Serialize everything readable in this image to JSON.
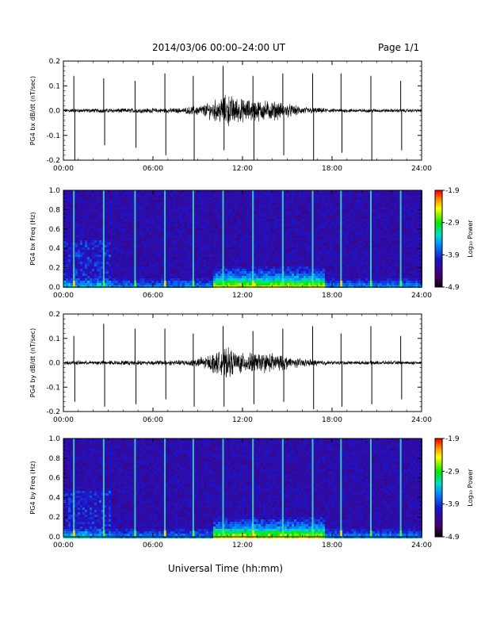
{
  "header": {
    "title": "2014/03/06  00:00–24:00 UT",
    "page": "Page 1/1"
  },
  "footer": {
    "xlabel": "Universal Time (hh:mm)"
  },
  "colorbar": {
    "ticks": [
      "-1.9",
      "-2.9",
      "-3.9",
      "-4.9"
    ],
    "label": "Log₁₀ Power"
  },
  "colors": {
    "trace": "#000000",
    "spectrogram_bg": "#2a1060",
    "spectrogram_low": "#1a2aa0",
    "spectrogram_band": "#20c0b0",
    "line_events": "#40e0c0"
  },
  "chart_data": [
    {
      "type": "line",
      "ylabel": "PG4 bx dB/dt (nT/sec)",
      "xlim": [
        "00:00",
        "24:00"
      ],
      "ylim": [
        -0.2,
        0.2
      ],
      "xticks": [
        "00:00",
        "06:00",
        "12:00",
        "18:00",
        "24:00"
      ],
      "yticks": [
        "-0.2",
        "-0.1",
        "0.0",
        "0.1",
        "0.2"
      ],
      "spike_hours": [
        0.7,
        2.7,
        4.8,
        6.8,
        8.7,
        10.7,
        12.7,
        14.7,
        16.7,
        18.6,
        20.6,
        22.6
      ],
      "spike_max": [
        0.14,
        0.13,
        0.12,
        0.15,
        0.14,
        0.18,
        0.14,
        0.15,
        0.15,
        0.15,
        0.14,
        0.12
      ],
      "spike_min": [
        -0.2,
        -0.14,
        -0.15,
        -0.18,
        -0.2,
        -0.16,
        -0.2,
        -0.18,
        -0.2,
        -0.17,
        -0.2,
        -0.16
      ],
      "noise_envelope": [
        {
          "hour": 0,
          "amp": 0.006
        },
        {
          "hour": 8,
          "amp": 0.008
        },
        {
          "hour": 9.5,
          "amp": 0.02
        },
        {
          "hour": 11,
          "amp": 0.05
        },
        {
          "hour": 12,
          "amp": 0.035
        },
        {
          "hour": 14,
          "amp": 0.03
        },
        {
          "hour": 16,
          "amp": 0.012
        },
        {
          "hour": 18,
          "amp": 0.006
        },
        {
          "hour": 24,
          "amp": 0.005
        }
      ]
    },
    {
      "type": "heatmap",
      "ylabel": "PG4 bx Freq (Hz)",
      "xlim": [
        "00:00",
        "24:00"
      ],
      "ylim": [
        0.0,
        1.0
      ],
      "xticks": [
        "00:00",
        "06:00",
        "12:00",
        "18:00",
        "24:00"
      ],
      "yticks": [
        "0.0",
        "0.2",
        "0.4",
        "0.6",
        "0.8",
        "1.0"
      ],
      "zlim": [
        -4.9,
        -1.9
      ],
      "event_hours": [
        0.7,
        2.7,
        4.8,
        6.8,
        8.7,
        10.7,
        12.7,
        14.7,
        16.7,
        18.6,
        20.6,
        22.6
      ],
      "enhanced_band_hours": [
        10.0,
        17.5
      ]
    },
    {
      "type": "line",
      "ylabel": "PG4 by dB/dt (nT/sec)",
      "xlim": [
        "00:00",
        "24:00"
      ],
      "ylim": [
        -0.2,
        0.2
      ],
      "xticks": [
        "00:00",
        "06:00",
        "12:00",
        "18:00",
        "24:00"
      ],
      "yticks": [
        "-0.2",
        "-0.1",
        "0.0",
        "0.1",
        "0.2"
      ],
      "spike_hours": [
        0.7,
        2.7,
        4.8,
        6.8,
        8.7,
        10.7,
        12.7,
        14.7,
        16.7,
        18.6,
        20.6,
        22.6
      ],
      "spike_max": [
        0.11,
        0.16,
        0.14,
        0.14,
        0.12,
        0.15,
        0.13,
        0.14,
        0.15,
        0.12,
        0.15,
        0.11
      ],
      "spike_min": [
        -0.16,
        -0.18,
        -0.17,
        -0.15,
        -0.18,
        -0.18,
        -0.17,
        -0.16,
        -0.19,
        -0.18,
        -0.17,
        -0.15
      ],
      "noise_envelope": [
        {
          "hour": 0,
          "amp": 0.006
        },
        {
          "hour": 8,
          "amp": 0.008
        },
        {
          "hour": 9.5,
          "amp": 0.02
        },
        {
          "hour": 11,
          "amp": 0.045
        },
        {
          "hour": 12,
          "amp": 0.03
        },
        {
          "hour": 14,
          "amp": 0.03
        },
        {
          "hour": 16,
          "amp": 0.012
        },
        {
          "hour": 18,
          "amp": 0.006
        },
        {
          "hour": 24,
          "amp": 0.005
        }
      ]
    },
    {
      "type": "heatmap",
      "ylabel": "PG4 by Freq (Hz)",
      "xlim": [
        "00:00",
        "24:00"
      ],
      "ylim": [
        0.0,
        1.0
      ],
      "xticks": [
        "00:00",
        "06:00",
        "12:00",
        "18:00",
        "24:00"
      ],
      "yticks": [
        "0.0",
        "0.2",
        "0.4",
        "0.6",
        "0.8",
        "1.0"
      ],
      "zlim": [
        -4.9,
        -1.9
      ],
      "event_hours": [
        0.7,
        2.7,
        4.8,
        6.8,
        8.7,
        10.7,
        12.7,
        14.7,
        16.7,
        18.6,
        20.6,
        22.6
      ],
      "enhanced_band_hours": [
        10.0,
        17.5
      ]
    }
  ]
}
